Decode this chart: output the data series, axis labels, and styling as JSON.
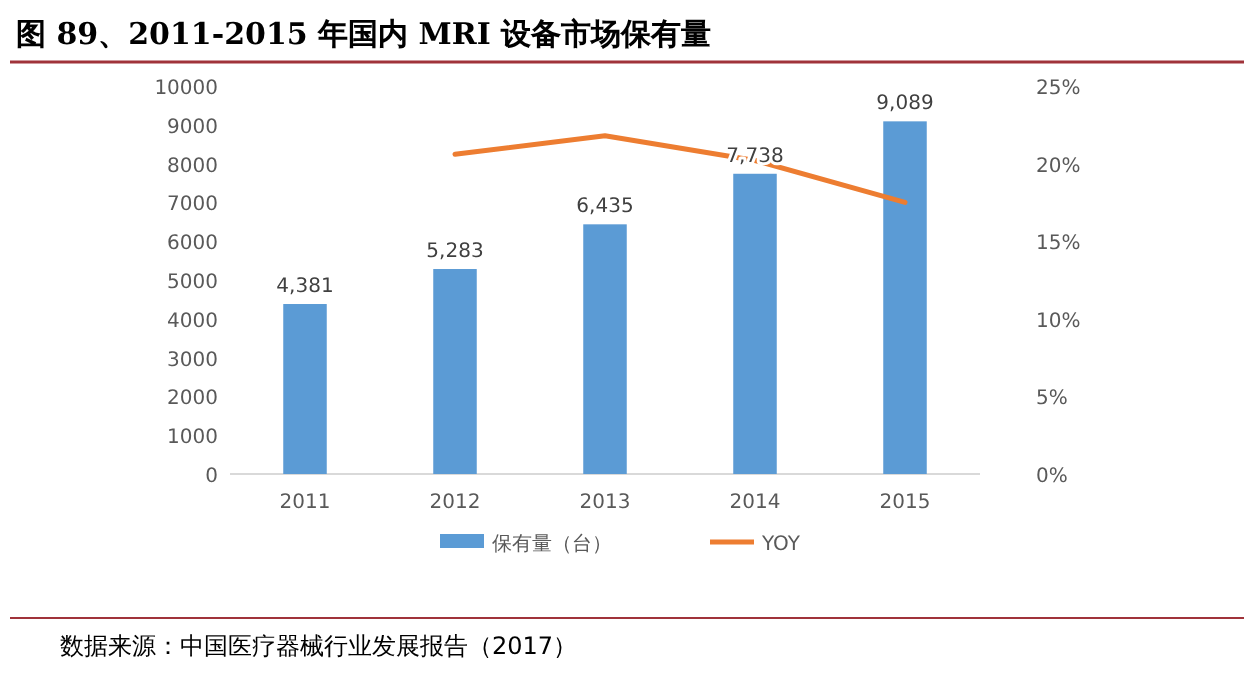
{
  "chart_data": {
    "type": "bar",
    "title": "图 89、2011-2015 年国内 MRI 设备市场保有量",
    "categories": [
      "2011",
      "2012",
      "2013",
      "2014",
      "2015"
    ],
    "series": [
      {
        "name": "保有量（台）",
        "color": "#5b9bd5",
        "values": [
          4381,
          5283,
          6435,
          7738,
          9089
        ],
        "value_labels": [
          "4,381",
          "5,283",
          "6,435",
          "7,738",
          "9,089"
        ]
      },
      {
        "name": "YOY",
        "type": "line",
        "axis": "y2",
        "color": "#ed7d31",
        "values": [
          null,
          20.6,
          21.8,
          20.2,
          17.5
        ]
      }
    ],
    "ylim": [
      0,
      10000
    ],
    "yticks": [
      0,
      1000,
      2000,
      3000,
      4000,
      5000,
      6000,
      7000,
      8000,
      9000,
      10000
    ],
    "y2lim": [
      0,
      25
    ],
    "y2ticks": [
      {
        "value": 0,
        "label": "0%"
      },
      {
        "value": 5,
        "label": "5%"
      },
      {
        "value": 10,
        "label": "10%"
      },
      {
        "value": 15,
        "label": "15%"
      },
      {
        "value": 20,
        "label": "20%"
      },
      {
        "value": 25,
        "label": "25%"
      }
    ],
    "legend": "bottom",
    "annotations": [
      "数据来源：中国医疗器械行业发展报告（2017）"
    ]
  }
}
